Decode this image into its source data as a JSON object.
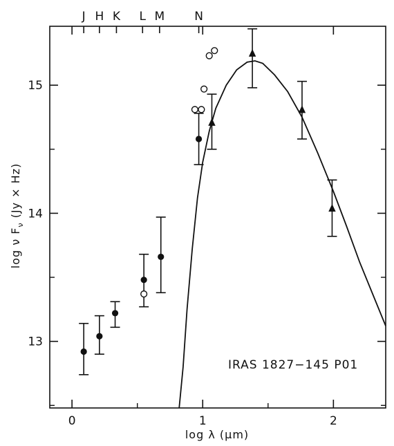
{
  "chart_data": {
    "type": "scatter",
    "title": "",
    "xlabel": "log λ (μm)",
    "ylabel": "log ν F",
    "ylabel_subscript": "ν",
    "ylabel_units": "(Jy × Hz)",
    "xlim": [
      -0.17,
      2.4
    ],
    "ylim": [
      12.48,
      15.46
    ],
    "x_ticks": [
      "0",
      "1",
      "2"
    ],
    "y_ticks": [
      "13",
      "14",
      "15"
    ],
    "grid": false,
    "annotation": "IRAS 1827−145 P01",
    "band_labels": [
      {
        "label": "J",
        "x": 0.09
      },
      {
        "label": "H",
        "x": 0.21
      },
      {
        "label": "K",
        "x": 0.34
      },
      {
        "label": "L",
        "x": 0.54
      },
      {
        "label": "M",
        "x": 0.67
      },
      {
        "label": "N",
        "x": 0.97
      }
    ],
    "series": [
      {
        "marker": "filled-circle",
        "points": [
          {
            "x": 0.09,
            "y": 12.92,
            "ylo": 12.74,
            "yhi": 13.14
          },
          {
            "x": 0.21,
            "y": 13.04,
            "ylo": 12.9,
            "yhi": 13.2
          },
          {
            "x": 0.33,
            "y": 13.22,
            "ylo": 13.11,
            "yhi": 13.31
          },
          {
            "x": 0.55,
            "y": 13.48,
            "ylo": 13.27,
            "yhi": 13.68
          },
          {
            "x": 0.68,
            "y": 13.66,
            "ylo": 13.38,
            "yhi": 13.97
          },
          {
            "x": 0.97,
            "y": 14.58,
            "ylo": 14.38,
            "yhi": 14.78
          }
        ]
      },
      {
        "marker": "open-circle",
        "points": [
          {
            "x": 0.55,
            "y": 13.37
          },
          {
            "x": 0.94,
            "y": 14.81
          },
          {
            "x": 0.99,
            "y": 14.81
          },
          {
            "x": 1.01,
            "y": 14.97
          },
          {
            "x": 1.05,
            "y": 15.23
          },
          {
            "x": 1.09,
            "y": 15.27
          }
        ]
      },
      {
        "marker": "filled-triangle",
        "points": [
          {
            "x": 1.07,
            "y": 14.71,
            "ylo": 14.5,
            "yhi": 14.93
          },
          {
            "x": 1.38,
            "y": 15.25,
            "ylo": 14.98,
            "yhi": 15.44
          },
          {
            "x": 1.76,
            "y": 14.81,
            "ylo": 14.58,
            "yhi": 15.03
          },
          {
            "x": 1.99,
            "y": 14.04,
            "ylo": 13.82,
            "yhi": 14.26
          }
        ]
      },
      {
        "type": "line",
        "x": [
          0.82,
          0.85,
          0.88,
          0.92,
          0.96,
          1.0,
          1.05,
          1.1,
          1.18,
          1.26,
          1.34,
          1.4,
          1.46,
          1.55,
          1.65,
          1.76,
          1.88,
          2.0,
          2.1,
          2.2,
          2.3,
          2.4
        ],
        "y": [
          12.48,
          12.8,
          13.25,
          13.72,
          14.12,
          14.4,
          14.64,
          14.82,
          15.0,
          15.12,
          15.18,
          15.19,
          15.17,
          15.08,
          14.95,
          14.75,
          14.47,
          14.17,
          13.9,
          13.62,
          13.37,
          13.12
        ]
      }
    ]
  }
}
